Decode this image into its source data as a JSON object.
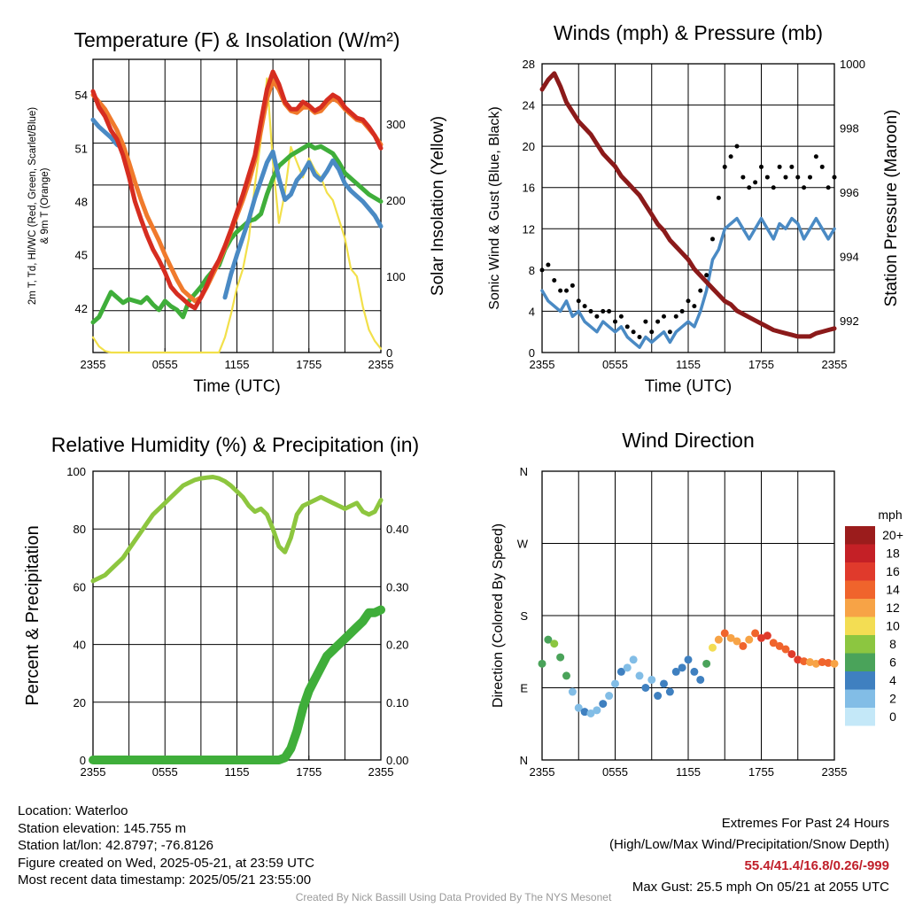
{
  "chart_data": [
    {
      "panel": "temperature",
      "type": "line",
      "title": "Temperature (F) & Insolation (W/m²)",
      "xlabel": "Time (UTC)",
      "ylabel_left_line1": "2m T, Td, HI/WC (Red, Green, Scarlet/Blue)",
      "ylabel_left_line2": "& 9m T (Orange)",
      "ylabel_right": "Solar Insolation (Yellow)",
      "x_ticks": [
        "2355",
        "0555",
        "1155",
        "1755",
        "2355"
      ],
      "ylim_left": [
        39.5,
        56
      ],
      "y_ticks_left": [
        42,
        45,
        48,
        51,
        54
      ],
      "ylim_right": [
        0,
        385
      ],
      "y_ticks_right": [
        0,
        100,
        200,
        300
      ],
      "grid": true,
      "x_hours": [
        0,
        0.5,
        1,
        1.5,
        2,
        2.5,
        3,
        3.5,
        4,
        4.5,
        5,
        5.5,
        6,
        6.5,
        7,
        7.5,
        8,
        8.5,
        9,
        9.5,
        10,
        10.5,
        11,
        11.5,
        12,
        12.5,
        13,
        13.5,
        14,
        14.5,
        15,
        15.5,
        16,
        16.5,
        17,
        17.5,
        18,
        18.5,
        19,
        19.5,
        20,
        20.5,
        21,
        21.5,
        22,
        22.5,
        23,
        23.5,
        24
      ],
      "series": [
        {
          "name": "2m T",
          "color": "#d62d20",
          "axis": "left",
          "values": [
            54.2,
            53.3,
            52.8,
            52.0,
            51.5,
            50.6,
            49.4,
            48.0,
            47.0,
            46.1,
            45.3,
            44.7,
            44.0,
            43.2,
            42.8,
            42.5,
            42.2,
            42.0,
            42.6,
            43.3,
            44.1,
            44.7,
            45.5,
            46.4,
            47.4,
            48.4,
            49.5,
            50.6,
            52.5,
            54.3,
            55.3,
            54.6,
            53.6,
            53.2,
            53.2,
            53.6,
            53.4,
            53.1,
            53.3,
            53.7,
            54.0,
            53.8,
            53.3,
            53.0,
            52.7,
            52.6,
            52.2,
            51.7,
            51.0
          ]
        },
        {
          "name": "9m T",
          "color": "#f07a2c",
          "axis": "left",
          "values": [
            54.0,
            53.6,
            53.2,
            52.6,
            52.0,
            51.2,
            50.2,
            49.1,
            48.1,
            47.2,
            46.5,
            45.8,
            45.0,
            44.3,
            43.6,
            43.0,
            42.7,
            42.4,
            42.6,
            43.2,
            43.9,
            44.6,
            45.4,
            46.3,
            47.2,
            48.1,
            49.1,
            50.3,
            52.0,
            53.8,
            54.8,
            54.3,
            53.5,
            53.1,
            53.0,
            53.3,
            53.3,
            53.0,
            53.1,
            53.5,
            53.8,
            53.6,
            53.2,
            52.9,
            52.6,
            52.5,
            52.1,
            51.7,
            51.2
          ]
        },
        {
          "name": "Td",
          "color": "#3fae3a",
          "axis": "left",
          "values": [
            41.2,
            41.5,
            42.2,
            42.9,
            42.6,
            42.3,
            42.5,
            42.4,
            42.3,
            42.6,
            42.2,
            41.9,
            42.4,
            42.1,
            41.9,
            41.5,
            42.4,
            42.8,
            43.2,
            43.7,
            44.1,
            44.4,
            45.3,
            45.9,
            46.3,
            46.6,
            46.9,
            47.0,
            47.3,
            48.4,
            49.3,
            50.0,
            50.3,
            50.6,
            50.8,
            51.0,
            51.2,
            51.0,
            51.1,
            50.9,
            50.7,
            50.2,
            49.6,
            49.3,
            49.0,
            48.7,
            48.4,
            48.2,
            48.0
          ]
        },
        {
          "name": "HI/WC",
          "color": "#4a8ac4",
          "axis": "left",
          "values": [
            52.6,
            52.2,
            51.9,
            51.6,
            51.2,
            51.0,
            null,
            null,
            null,
            null,
            null,
            null,
            null,
            null,
            null,
            null,
            null,
            null,
            null,
            null,
            null,
            null,
            42.6,
            43.9,
            45.0,
            46.0,
            47.0,
            48.2,
            49.2,
            50.2,
            50.8,
            49.3,
            48.1,
            48.4,
            49.2,
            49.6,
            50.2,
            49.5,
            49.2,
            49.7,
            50.3,
            49.8,
            49.0,
            48.6,
            48.3,
            48.0,
            47.6,
            47.2,
            46.6
          ]
        },
        {
          "name": "Insolation",
          "color": "#f2e04a",
          "axis": "right",
          "values": [
            20,
            8,
            2,
            0,
            0,
            0,
            0,
            0,
            0,
            0,
            0,
            0,
            0,
            0,
            0,
            0,
            0,
            0,
            0,
            0,
            0,
            0,
            20,
            50,
            85,
            110,
            150,
            220,
            280,
            360,
            250,
            170,
            210,
            270,
            250,
            230,
            255,
            240,
            230,
            210,
            200,
            175,
            150,
            110,
            100,
            60,
            30,
            15,
            5
          ]
        }
      ]
    },
    {
      "panel": "winds",
      "type": "scatter",
      "title": "Winds (mph) & Pressure (mb)",
      "xlabel": "Time (UTC)",
      "ylabel_left": "Sonic Wind & Gust (Blue, Black)",
      "ylabel_right": "Station Pressure (Maroon)",
      "x_ticks": [
        "2355",
        "0555",
        "1155",
        "1755",
        "2355"
      ],
      "ylim_left": [
        0,
        28
      ],
      "y_ticks_left": [
        0,
        4,
        8,
        12,
        16,
        20,
        24,
        28
      ],
      "ylim_right": [
        991,
        1000
      ],
      "y_ticks_right": [
        992,
        994,
        996,
        998,
        1000
      ],
      "grid": true,
      "x_hours": [
        0,
        0.5,
        1,
        1.5,
        2,
        2.5,
        3,
        3.5,
        4,
        4.5,
        5,
        5.5,
        6,
        6.5,
        7,
        7.5,
        8,
        8.5,
        9,
        9.5,
        10,
        10.5,
        11,
        11.5,
        12,
        12.5,
        13,
        13.5,
        14,
        14.5,
        15,
        15.5,
        16,
        16.5,
        17,
        17.5,
        18,
        18.5,
        19,
        19.5,
        20,
        20.5,
        21,
        21.5,
        22,
        22.5,
        23,
        23.5,
        24
      ],
      "series": [
        {
          "name": "Sonic Wind",
          "color": "#4a8ac4",
          "axis": "left",
          "values": [
            6,
            5,
            4.5,
            4,
            5,
            3.5,
            4,
            3,
            2.5,
            2,
            3,
            2.5,
            2,
            2.5,
            1.5,
            1,
            0.5,
            1.5,
            1,
            1.5,
            2,
            1,
            2,
            2.5,
            3,
            2.5,
            4,
            6,
            9,
            10,
            12,
            12.5,
            13,
            12,
            11,
            12,
            13,
            12,
            11,
            12.5,
            12,
            13,
            12.5,
            11,
            12,
            13,
            12,
            11,
            12
          ]
        },
        {
          "name": "Gust",
          "color": "#000000",
          "axis": "left",
          "values": [
            8,
            8.5,
            7,
            6,
            6,
            6.5,
            5,
            4.5,
            4,
            3.5,
            4,
            4,
            3,
            3.5,
            2.5,
            2,
            1.5,
            3,
            2,
            3,
            3.5,
            2,
            3.5,
            4,
            5,
            4.5,
            6,
            7.5,
            11,
            15,
            18,
            19,
            20,
            17,
            16,
            16.5,
            18,
            17,
            16,
            18,
            17,
            18,
            17,
            16,
            17,
            19,
            18,
            16,
            17
          ]
        },
        {
          "name": "Station Pressure",
          "color": "#8b1a1a",
          "axis": "right",
          "values": [
            999.2,
            999.5,
            999.7,
            999.3,
            998.8,
            998.5,
            998.2,
            998.0,
            997.8,
            997.5,
            997.2,
            997.0,
            996.8,
            996.5,
            996.3,
            996.1,
            995.9,
            995.6,
            995.3,
            995.0,
            994.8,
            994.5,
            994.3,
            994.1,
            993.9,
            993.6,
            993.4,
            993.2,
            993.0,
            992.8,
            992.6,
            992.5,
            992.3,
            992.2,
            992.1,
            992.0,
            991.9,
            991.8,
            991.7,
            991.65,
            991.6,
            991.55,
            991.5,
            991.5,
            991.5,
            991.6,
            991.65,
            991.7,
            991.75
          ]
        }
      ]
    },
    {
      "panel": "humidity",
      "type": "line",
      "title": "Relative Humidity (%) & Precipitation (in)",
      "ylabel_left": "Percent & Precipitation",
      "x_ticks": [
        "2355",
        "0555",
        "1155",
        "1755",
        "2355"
      ],
      "ylim_left": [
        0,
        100
      ],
      "y_ticks_left": [
        0,
        20,
        40,
        60,
        80,
        100
      ],
      "ylim_right": [
        0,
        0.5
      ],
      "y_ticks_right": [
        "0.00",
        "0.10",
        "0.20",
        "0.30",
        "0.40"
      ],
      "grid": true,
      "x_hours": [
        0,
        0.5,
        1,
        1.5,
        2,
        2.5,
        3,
        3.5,
        4,
        4.5,
        5,
        5.5,
        6,
        6.5,
        7,
        7.5,
        8,
        8.5,
        9,
        9.5,
        10,
        10.5,
        11,
        11.5,
        12,
        12.5,
        13,
        13.5,
        14,
        14.5,
        15,
        15.5,
        16,
        16.5,
        17,
        17.5,
        18,
        18.5,
        19,
        19.5,
        20,
        20.5,
        21,
        21.5,
        22,
        22.5,
        23,
        23.5,
        24
      ],
      "series": [
        {
          "name": "Relative Humidity",
          "color": "#8dc63f",
          "axis": "left",
          "values": [
            62,
            63,
            64,
            66,
            68,
            70,
            73,
            76,
            79,
            82,
            85,
            87,
            89,
            91,
            93,
            95,
            96,
            97,
            97.5,
            97.8,
            98,
            97.5,
            96.5,
            95,
            93,
            91,
            88,
            86,
            87,
            85,
            80,
            74,
            72,
            77,
            85,
            88,
            89,
            90,
            91,
            90,
            89,
            88,
            87,
            88,
            89,
            86,
            85,
            86,
            90
          ]
        },
        {
          "name": "Precipitation",
          "color": "#3fae3a",
          "axis": "right",
          "values": [
            0,
            0,
            0,
            0,
            0,
            0,
            0,
            0,
            0,
            0,
            0,
            0,
            0,
            0,
            0,
            0,
            0,
            0,
            0,
            0,
            0,
            0,
            0,
            0,
            0,
            0,
            0,
            0,
            0,
            0,
            0,
            0,
            0.004,
            0.02,
            0.05,
            0.09,
            0.12,
            0.14,
            0.16,
            0.18,
            0.19,
            0.2,
            0.21,
            0.22,
            0.23,
            0.24,
            0.255,
            0.255,
            0.26
          ]
        }
      ]
    },
    {
      "panel": "direction",
      "type": "scatter",
      "title": "Wind Direction",
      "ylabel_left": "Direction (Colored By Speed)",
      "x_ticks": [
        "2355",
        "0555",
        "1155",
        "1755",
        "2355"
      ],
      "y_ticks": [
        "N",
        "E",
        "S",
        "W",
        "N"
      ],
      "ylim_degrees": [
        0,
        360
      ],
      "grid": true,
      "legend_title": "mph",
      "legend_labels": [
        "20+",
        "18",
        "16",
        "14",
        "12",
        "10",
        "8",
        "6",
        "4",
        "2",
        "0"
      ],
      "legend_colors": [
        "#9b1c1c",
        "#c42026",
        "#e03a2c",
        "#f0642c",
        "#f7a346",
        "#f3dd53",
        "#8cc640",
        "#4aa35a",
        "#3f80c0",
        "#82bde6",
        "#c4e8f8"
      ],
      "x_hours": [
        0,
        0.5,
        1,
        1.5,
        2,
        2.5,
        3,
        3.5,
        4,
        4.5,
        5,
        5.5,
        6,
        6.5,
        7,
        7.5,
        8,
        8.5,
        9,
        9.5,
        10,
        10.5,
        11,
        11.5,
        12,
        12.5,
        13,
        13.5,
        14,
        14.5,
        15,
        15.5,
        16,
        16.5,
        17,
        17.5,
        18,
        18.5,
        19,
        19.5,
        20,
        20.5,
        21,
        21.5,
        22,
        22.5,
        23,
        23.5,
        24
      ],
      "directions": [
        120,
        150,
        145,
        128,
        105,
        85,
        65,
        60,
        58,
        62,
        70,
        80,
        95,
        110,
        115,
        125,
        105,
        90,
        100,
        80,
        95,
        85,
        110,
        115,
        125,
        110,
        100,
        120,
        140,
        150,
        158,
        152,
        148,
        142,
        150,
        158,
        152,
        155,
        146,
        142,
        138,
        132,
        125,
        123,
        122,
        120,
        122,
        121,
        120
      ],
      "speeds": [
        6,
        6,
        7,
        6,
        5,
        2,
        2,
        3,
        2,
        2,
        3,
        2,
        2,
        4,
        2,
        1,
        2,
        3,
        2,
        3,
        4,
        3,
        4,
        3,
        4,
        4,
        3,
        5,
        10,
        12,
        14,
        12,
        12,
        13,
        12,
        14,
        16,
        15,
        14,
        13,
        14,
        15,
        16,
        14,
        12,
        12,
        13,
        14,
        12
      ]
    }
  ],
  "info": {
    "location": "Location: Waterloo",
    "elevation": "Station elevation: 145.755 m",
    "latlon": "Station lat/lon: 42.8797; -76.8126",
    "created": "Figure created on Wed, 2025-05-21, at 23:59 UTC",
    "recent": "Most recent data timestamp: 2025/05/21 23:55:00"
  },
  "extremes": {
    "title": "Extremes For Past 24 Hours",
    "subtitle": "(High/Low/Max Wind/Precipitation/Snow Depth)",
    "values": "55.4/41.4/16.8/0.26/-999",
    "gust": "Max Gust: 25.5 mph On 05/21 at 2055 UTC"
  },
  "credit": "Created By Nick Bassill Using Data Provided By The NYS Mesonet"
}
